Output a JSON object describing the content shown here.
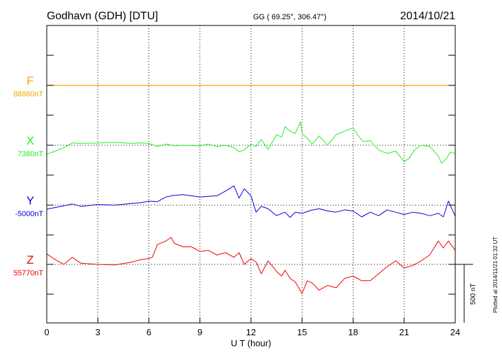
{
  "header": {
    "station": "Godhavn (GDH)  [DTU]",
    "coords": "GG ( 69.25°, 306.47°)",
    "date": "2014/10/21"
  },
  "footer": {
    "plotted": "Plotted at 2014/11/21 01:32 UT",
    "scale_label": "500 nT"
  },
  "colors": {
    "F": "#f0a800",
    "X": "#22ee22",
    "Y": "#0000dd",
    "Z": "#ee0000",
    "axis": "#000000"
  },
  "chart_data": {
    "type": "line",
    "xlabel": "U T (hour)",
    "xlim": [
      0,
      24
    ],
    "xticks": [
      0,
      3,
      6,
      9,
      12,
      15,
      18,
      21,
      24
    ],
    "scale_bar_nT": 500,
    "series": [
      {
        "name": "F",
        "baseline_label": "88880nT",
        "color": "#f0a800",
        "x": [
          0,
          24
        ],
        "y": [
          0,
          0
        ]
      },
      {
        "name": "X",
        "baseline_label": "7380nT",
        "color": "#22ee22",
        "x": [
          0,
          0.5,
          1,
          1.5,
          2,
          3,
          4,
          5,
          5.5,
          6,
          6.5,
          7,
          7.5,
          8,
          9,
          9.5,
          10,
          10.5,
          11,
          11.3,
          11.6,
          12,
          12.3,
          12.6,
          13,
          13.5,
          13.8,
          14,
          14.3,
          14.6,
          14.9,
          15,
          15.3,
          15.6,
          16,
          16.5,
          17,
          17.5,
          18,
          18.3,
          18.6,
          19,
          19.5,
          20,
          20.5,
          21,
          21.3,
          21.6,
          22,
          22.5,
          23,
          23.2,
          23.5,
          23.7,
          24
        ],
        "y": [
          -75,
          -50,
          -20,
          20,
          15,
          20,
          25,
          15,
          20,
          15,
          -10,
          10,
          -5,
          0,
          -5,
          10,
          -10,
          0,
          -20,
          -55,
          -40,
          10,
          -10,
          50,
          -35,
          90,
          70,
          160,
          120,
          100,
          200,
          100,
          60,
          10,
          80,
          0,
          90,
          120,
          150,
          80,
          30,
          40,
          -40,
          -70,
          -50,
          -140,
          -110,
          -40,
          0,
          -10,
          -90,
          -155,
          -110,
          -60,
          -70
        ]
      },
      {
        "name": "Y",
        "baseline_label": "-5000nT",
        "color": "#0000dd",
        "x": [
          0,
          0.5,
          1,
          1.5,
          2,
          3,
          4,
          5,
          5.5,
          6,
          6.5,
          7,
          7.5,
          8,
          9,
          9.5,
          10,
          10.5,
          11,
          11.3,
          11.6,
          12,
          12.3,
          12.6,
          13,
          13.5,
          14,
          14.3,
          14.6,
          15,
          15.5,
          16,
          16.5,
          17,
          17.5,
          18,
          18.5,
          19,
          19.5,
          20,
          20.5,
          21,
          21.5,
          22,
          22.5,
          23,
          23.3,
          23.6,
          24
        ],
        "y": [
          -35,
          -20,
          -5,
          10,
          -10,
          5,
          0,
          15,
          20,
          35,
          30,
          70,
          85,
          90,
          70,
          75,
          80,
          120,
          165,
          60,
          140,
          80,
          -60,
          -10,
          -30,
          -90,
          -60,
          -105,
          -60,
          -70,
          -45,
          -30,
          -50,
          -60,
          -40,
          -50,
          -100,
          -60,
          -90,
          -40,
          -60,
          -80,
          -60,
          -70,
          -90,
          -70,
          -100,
          35,
          -95
        ]
      },
      {
        "name": "Z",
        "baseline_label": "55770nT",
        "color": "#ee0000",
        "x": [
          0,
          0.5,
          1,
          1.5,
          2,
          3,
          4,
          5,
          5.5,
          6,
          6.2,
          6.5,
          7,
          7.3,
          7.5,
          8,
          8.5,
          9,
          9.5,
          10,
          10.5,
          11,
          11.3,
          11.6,
          12,
          12.3,
          12.6,
          13,
          13.5,
          13.8,
          14,
          14.3,
          14.6,
          15,
          15.3,
          15.6,
          16,
          16.5,
          17,
          17.5,
          18,
          18.5,
          19,
          19.5,
          20,
          20.5,
          21,
          21.5,
          22,
          22.5,
          23,
          23.3,
          23.6,
          24
        ],
        "y": [
          90,
          40,
          0,
          60,
          10,
          0,
          -5,
          20,
          40,
          50,
          60,
          170,
          200,
          230,
          180,
          150,
          150,
          110,
          120,
          80,
          100,
          60,
          100,
          0,
          50,
          20,
          -80,
          30,
          -60,
          -100,
          -50,
          -120,
          -150,
          -250,
          -140,
          -160,
          -220,
          -180,
          -200,
          -120,
          -100,
          -140,
          -140,
          -80,
          -20,
          30,
          -30,
          -10,
          30,
          80,
          200,
          140,
          200,
          120
        ]
      }
    ]
  }
}
